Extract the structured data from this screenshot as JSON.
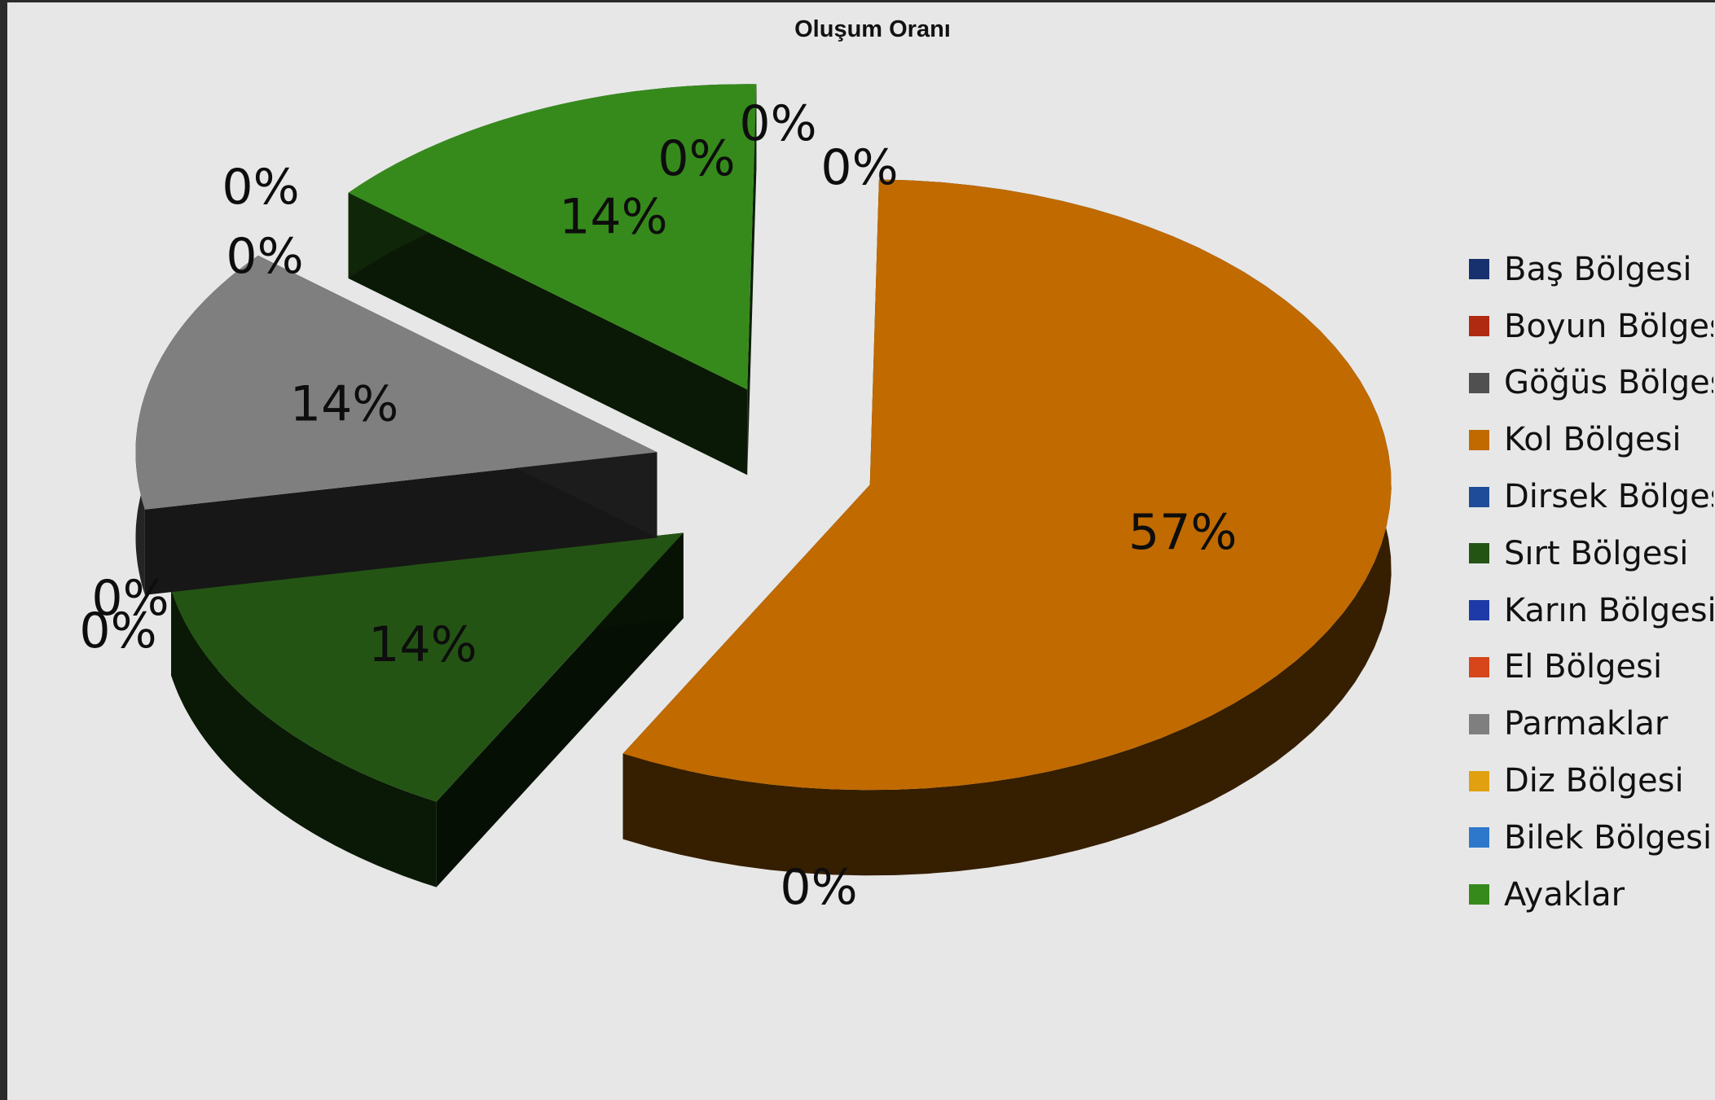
{
  "chart_data": {
    "type": "pie",
    "title": "Oluşum Oranı",
    "categories": [
      "Baş Bölgesi",
      "Boyun Bölgesi",
      "Göğüs Bölgesi",
      "Kol Bölgesi",
      "Dirsek Bölgesi",
      "Sırt Bölgesi",
      "Karın Bölgesi",
      "El Bölgesi",
      "Parmaklar",
      "Diz Bölgesi",
      "Bilek Bölgesi",
      "Ayaklar"
    ],
    "values": [
      0,
      0,
      0,
      57,
      0,
      14,
      0,
      0,
      14,
      0,
      0,
      14
    ],
    "data_labels": [
      "0%",
      "0%",
      "0%",
      "57%",
      "0%",
      "14%",
      "0%",
      "0%",
      "14%",
      "0%",
      "0%",
      "14%"
    ],
    "colors": [
      "#17306e",
      "#b02a12",
      "#505050",
      "#c06a00",
      "#1f4c98",
      "#245414",
      "#1e3aa8",
      "#d6461a",
      "#7f7f7f",
      "#e0a010",
      "#2e78cc",
      "#368a1c"
    ],
    "legend_position": "right",
    "style": "3d-exploded"
  }
}
